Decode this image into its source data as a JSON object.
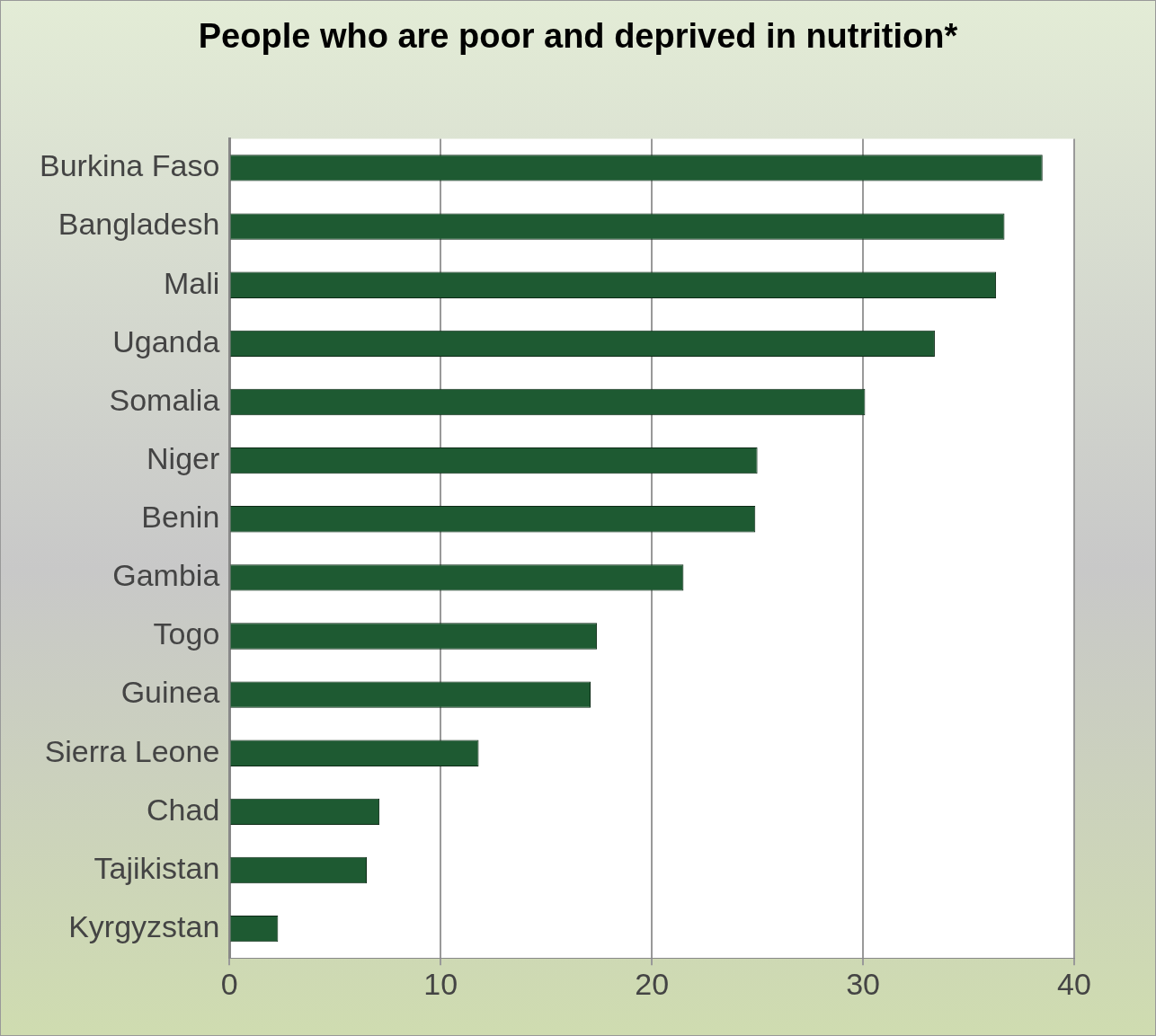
{
  "chart_data": {
    "type": "bar",
    "orientation": "horizontal",
    "title": "People who are poor and deprived in nutrition*",
    "categories": [
      "Burkina Faso",
      "Bangladesh",
      "Mali",
      "Uganda",
      "Somalia",
      "Niger",
      "Benin",
      "Gambia",
      "Togo",
      "Guinea",
      "Sierra Leone",
      "Chad",
      "Tajikistan",
      "Kyrgyzstan"
    ],
    "values": [
      38.5,
      36.7,
      36.3,
      33.4,
      30.1,
      25.0,
      24.9,
      21.5,
      17.4,
      17.1,
      11.8,
      7.1,
      6.5,
      2.3
    ],
    "color": "#1e5a32",
    "xlim": [
      0,
      40
    ],
    "xticks": [
      0,
      10,
      20,
      30,
      40
    ],
    "grid": "x",
    "legend": false
  }
}
